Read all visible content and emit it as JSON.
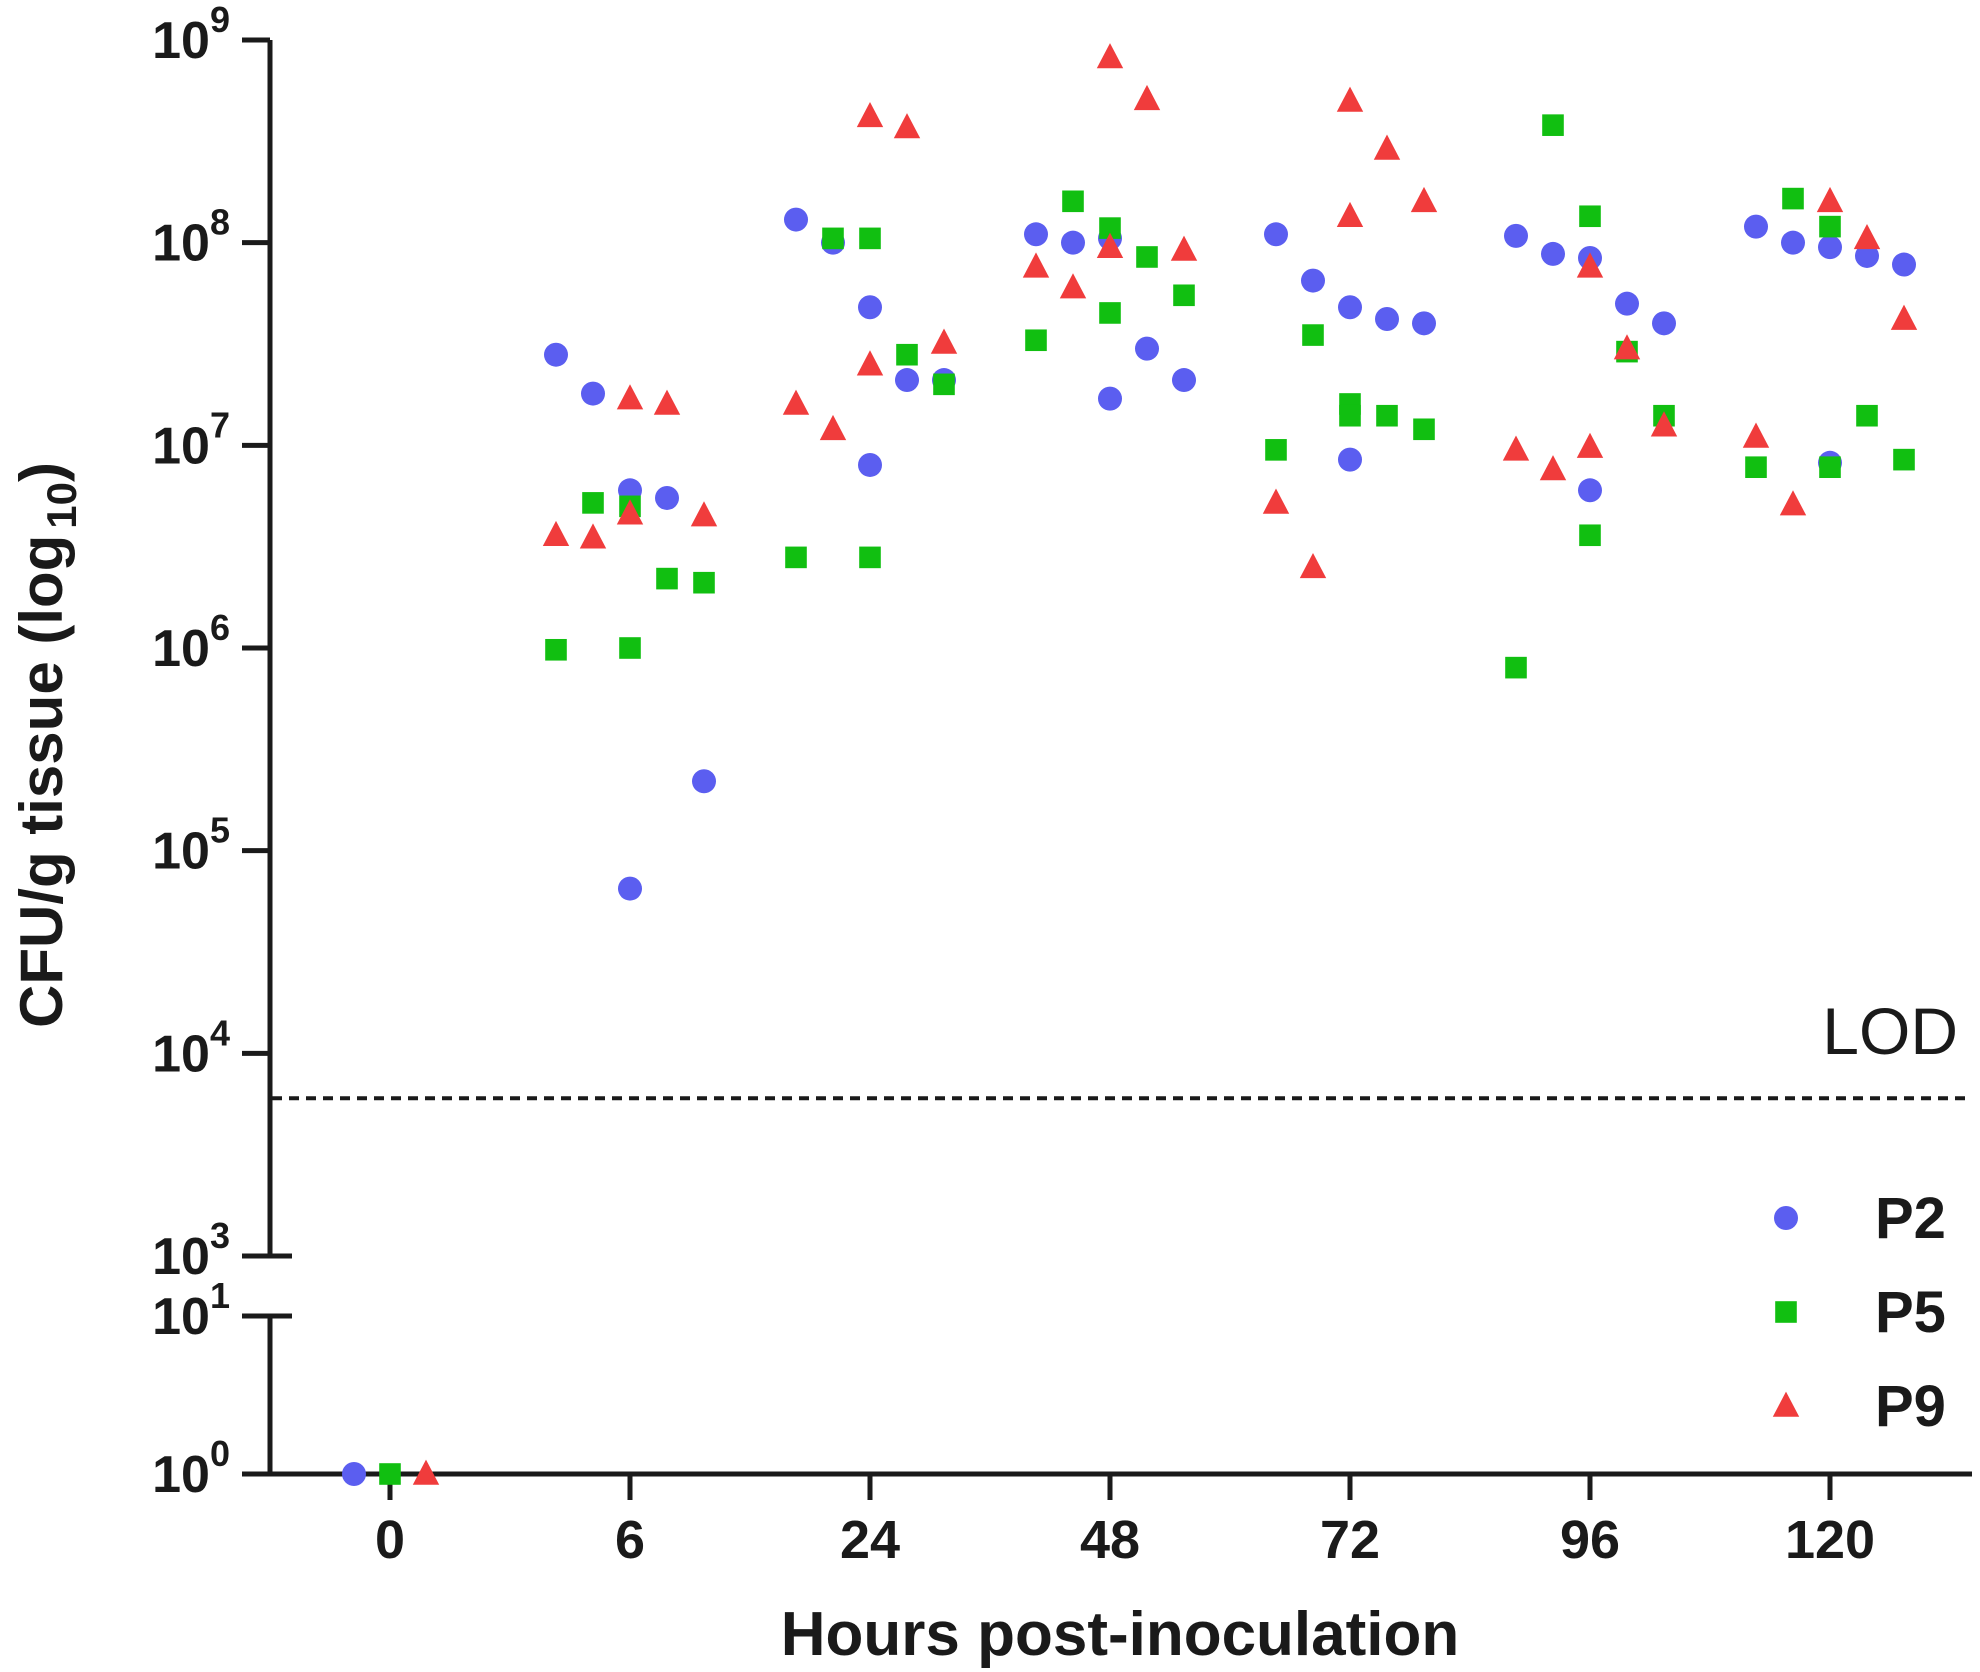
{
  "chart_data": {
    "type": "scatter",
    "title": "",
    "xlabel": "Hours post-inoculation",
    "ylabel_main": "CFU/g tissue (log",
    "ylabel_sub": "10",
    "ylabel_close": ")",
    "y_scale": "log10",
    "ylim_upper_exponent": [
      3,
      9
    ],
    "ylim_lower_exponent": [
      0,
      1
    ],
    "y_tick_base": "10",
    "y_ticks_upper": [
      "3",
      "4",
      "5",
      "6",
      "7",
      "8",
      "9"
    ],
    "y_ticks_lower": [
      "0",
      "1"
    ],
    "categories": [
      "0",
      "6",
      "24",
      "48",
      "72",
      "96",
      "120"
    ],
    "lod": {
      "label": "LOD",
      "value": 6000
    },
    "legend_position": "bottom-right",
    "series": [
      {
        "name": "P2",
        "marker": "circle",
        "color": "#5b5ef0",
        "points": [
          {
            "x": "0",
            "y": 1
          },
          {
            "x": "6",
            "y": 28000000
          },
          {
            "x": "6",
            "y": 18000000
          },
          {
            "x": "6",
            "y": 6000000
          },
          {
            "x": "6",
            "y": 5500000
          },
          {
            "x": "6",
            "y": 220000
          },
          {
            "x": "6",
            "y": 65000
          },
          {
            "x": "24",
            "y": 130000000
          },
          {
            "x": "24",
            "y": 100000000
          },
          {
            "x": "24",
            "y": 48000000
          },
          {
            "x": "24",
            "y": 21000000
          },
          {
            "x": "24",
            "y": 21000000
          },
          {
            "x": "24",
            "y": 8000000
          },
          {
            "x": "48",
            "y": 110000000
          },
          {
            "x": "48",
            "y": 100000000
          },
          {
            "x": "48",
            "y": 105000000
          },
          {
            "x": "48",
            "y": 30000000
          },
          {
            "x": "48",
            "y": 21000000
          },
          {
            "x": "48",
            "y": 17000000
          },
          {
            "x": "72",
            "y": 110000000
          },
          {
            "x": "72",
            "y": 65000000
          },
          {
            "x": "72",
            "y": 48000000
          },
          {
            "x": "72",
            "y": 42000000
          },
          {
            "x": "72",
            "y": 40000000
          },
          {
            "x": "72",
            "y": 8500000
          },
          {
            "x": "96",
            "y": 108000000
          },
          {
            "x": "96",
            "y": 88000000
          },
          {
            "x": "96",
            "y": 84000000
          },
          {
            "x": "96",
            "y": 50000000
          },
          {
            "x": "96",
            "y": 40000000
          },
          {
            "x": "96",
            "y": 6000000
          },
          {
            "x": "120",
            "y": 120000000
          },
          {
            "x": "120",
            "y": 100000000
          },
          {
            "x": "120",
            "y": 95000000
          },
          {
            "x": "120",
            "y": 86000000
          },
          {
            "x": "120",
            "y": 78000000
          },
          {
            "x": "120",
            "y": 8200000
          }
        ]
      },
      {
        "name": "P5",
        "marker": "square",
        "color": "#11bf11",
        "points": [
          {
            "x": "0",
            "y": 1
          },
          {
            "x": "6",
            "y": 5200000
          },
          {
            "x": "6",
            "y": 5000000
          },
          {
            "x": "6",
            "y": 2200000
          },
          {
            "x": "6",
            "y": 2100000
          },
          {
            "x": "6",
            "y": 1000000
          },
          {
            "x": "6",
            "y": 980000
          },
          {
            "x": "24",
            "y": 105000000
          },
          {
            "x": "24",
            "y": 105000000
          },
          {
            "x": "24",
            "y": 28000000
          },
          {
            "x": "24",
            "y": 20000000
          },
          {
            "x": "24",
            "y": 2800000
          },
          {
            "x": "24",
            "y": 2800000
          },
          {
            "x": "48",
            "y": 160000000
          },
          {
            "x": "48",
            "y": 118000000
          },
          {
            "x": "48",
            "y": 85000000
          },
          {
            "x": "48",
            "y": 55000000
          },
          {
            "x": "48",
            "y": 45000000
          },
          {
            "x": "48",
            "y": 33000000
          },
          {
            "x": "72",
            "y": 35000000
          },
          {
            "x": "72",
            "y": 16000000
          },
          {
            "x": "72",
            "y": 14000000
          },
          {
            "x": "72",
            "y": 12000000
          },
          {
            "x": "72",
            "y": 14000000
          },
          {
            "x": "72",
            "y": 9500000
          },
          {
            "x": "96",
            "y": 380000000
          },
          {
            "x": "96",
            "y": 135000000
          },
          {
            "x": "96",
            "y": 29000000
          },
          {
            "x": "96",
            "y": 14000000
          },
          {
            "x": "96",
            "y": 3600000
          },
          {
            "x": "96",
            "y": 800000
          },
          {
            "x": "120",
            "y": 165000000
          },
          {
            "x": "120",
            "y": 120000000
          },
          {
            "x": "120",
            "y": 14000000
          },
          {
            "x": "120",
            "y": 8500000
          },
          {
            "x": "120",
            "y": 7800000
          },
          {
            "x": "120",
            "y": 7800000
          }
        ]
      },
      {
        "name": "P9",
        "marker": "triangle",
        "color": "#f03c3c",
        "points": [
          {
            "x": "0",
            "y": 1
          },
          {
            "x": "6",
            "y": 17000000
          },
          {
            "x": "6",
            "y": 16000000
          },
          {
            "x": "6",
            "y": 4500000
          },
          {
            "x": "6",
            "y": 4600000
          },
          {
            "x": "6",
            "y": 3600000
          },
          {
            "x": "6",
            "y": 3500000
          },
          {
            "x": "24",
            "y": 420000000
          },
          {
            "x": "24",
            "y": 370000000
          },
          {
            "x": "24",
            "y": 32000000
          },
          {
            "x": "24",
            "y": 25000000
          },
          {
            "x": "24",
            "y": 16000000
          },
          {
            "x": "24",
            "y": 12000000
          },
          {
            "x": "48",
            "y": 820000000
          },
          {
            "x": "48",
            "y": 510000000
          },
          {
            "x": "48",
            "y": 92000000
          },
          {
            "x": "48",
            "y": 95000000
          },
          {
            "x": "48",
            "y": 76000000
          },
          {
            "x": "48",
            "y": 60000000
          },
          {
            "x": "72",
            "y": 500000000
          },
          {
            "x": "72",
            "y": 290000000
          },
          {
            "x": "72",
            "y": 160000000
          },
          {
            "x": "72",
            "y": 135000000
          },
          {
            "x": "72",
            "y": 5200000
          },
          {
            "x": "72",
            "y": 2500000
          },
          {
            "x": "96",
            "y": 76000000
          },
          {
            "x": "96",
            "y": 30000000
          },
          {
            "x": "96",
            "y": 12500000
          },
          {
            "x": "96",
            "y": 9800000
          },
          {
            "x": "96",
            "y": 9500000
          },
          {
            "x": "96",
            "y": 7600000
          },
          {
            "x": "120",
            "y": 160000000
          },
          {
            "x": "120",
            "y": 105000000
          },
          {
            "x": "120",
            "y": 42000000
          },
          {
            "x": "120",
            "y": 11000000
          },
          {
            "x": "120",
            "y": 5100000
          }
        ]
      }
    ]
  }
}
